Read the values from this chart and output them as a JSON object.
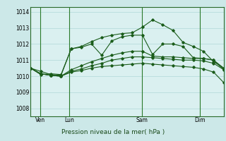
{
  "bg_color": "#cce8e8",
  "plot_bg_color": "#daf0f0",
  "grid_color": "#b0d8d8",
  "line_color": "#1a5c1a",
  "vline_color": "#2a7a2a",
  "spine_color": "#2a6a2a",
  "title": "Pression niveau de la mer( hPa )",
  "ylabel_ticks": [
    1008,
    1009,
    1010,
    1011,
    1012,
    1013,
    1014
  ],
  "ylim": [
    1007.5,
    1014.3
  ],
  "xlim": [
    0,
    20
  ],
  "xtick_positions": [
    1.0,
    4.0,
    11.5,
    17.5
  ],
  "xtick_labels": [
    "Ven",
    "Lun",
    "Sam",
    "Dim"
  ],
  "vline_positions": [
    1.0,
    4.0,
    11.5,
    17.5
  ],
  "n_points": 20,
  "lines": [
    [
      1010.5,
      1010.3,
      1010.1,
      1010.05,
      1011.7,
      1011.85,
      1012.15,
      1012.4,
      1012.55,
      1012.65,
      1012.7,
      1013.05,
      1013.5,
      1013.2,
      1012.85,
      1012.1,
      1011.85,
      1011.55,
      1010.9,
      1010.5
    ],
    [
      1010.5,
      1010.1,
      1010.15,
      1010.1,
      1011.7,
      1011.8,
      1012.0,
      1011.3,
      1012.2,
      1012.45,
      1012.55,
      1012.55,
      1011.35,
      1012.0,
      1012.0,
      1011.85,
      1011.15,
      1011.1,
      1011.0,
      1010.5
    ],
    [
      1010.5,
      1010.15,
      1010.05,
      1010.0,
      1010.4,
      1010.65,
      1010.9,
      1011.1,
      1011.3,
      1011.45,
      1011.55,
      1011.55,
      1011.25,
      1011.2,
      1011.2,
      1011.15,
      1011.1,
      1011.1,
      1011.0,
      1010.4
    ],
    [
      1010.5,
      1010.15,
      1010.05,
      1010.0,
      1010.3,
      1010.45,
      1010.65,
      1010.8,
      1011.0,
      1011.1,
      1011.2,
      1011.2,
      1011.15,
      1011.1,
      1011.05,
      1011.0,
      1011.0,
      1010.95,
      1010.8,
      1010.4
    ],
    [
      1010.5,
      1010.15,
      1010.05,
      1010.0,
      1010.25,
      1010.35,
      1010.5,
      1010.6,
      1010.65,
      1010.7,
      1010.75,
      1010.8,
      1010.75,
      1010.7,
      1010.65,
      1010.6,
      1010.55,
      1010.45,
      1010.25,
      1009.6
    ]
  ]
}
